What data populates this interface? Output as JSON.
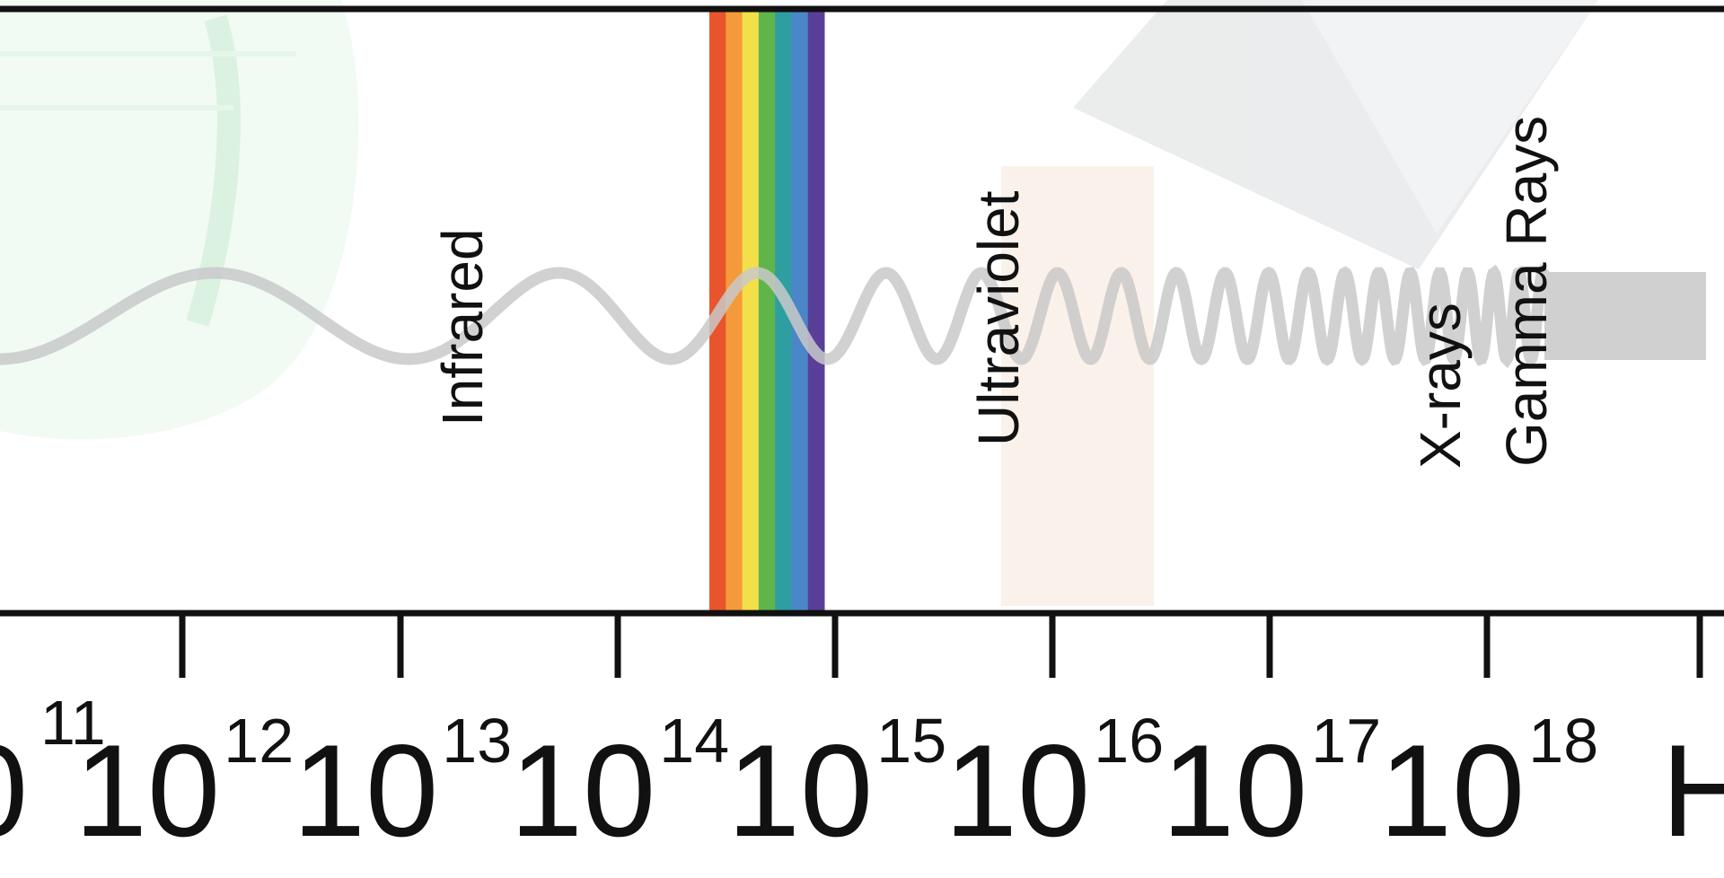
{
  "diagram": {
    "bands": [
      {
        "id": "infrared",
        "label": "Infrared"
      },
      {
        "id": "ultraviolet",
        "label": "Ultraviolet"
      },
      {
        "id": "xrays",
        "label": "X-rays"
      },
      {
        "id": "gamma",
        "label": "Gamma Rays"
      }
    ],
    "axis": {
      "partial_first_label": "0",
      "ticks": [
        {
          "base": "10",
          "exp": "11"
        },
        {
          "base": "10",
          "exp": "12"
        },
        {
          "base": "10",
          "exp": "13"
        },
        {
          "base": "10",
          "exp": "14"
        },
        {
          "base": "10",
          "exp": "15"
        },
        {
          "base": "10",
          "exp": "16"
        },
        {
          "base": "10",
          "exp": "17"
        },
        {
          "base": "10",
          "exp": "18"
        }
      ],
      "unit_partial": "H"
    },
    "visible_spectrum_colors": [
      "#e8552c",
      "#f59a3a",
      "#f3df4a",
      "#5fb54a",
      "#2f9ea0",
      "#4a86c8",
      "#5a3f99"
    ],
    "colors": {
      "axis": "#111111",
      "wave": "#c9c9c9"
    }
  }
}
